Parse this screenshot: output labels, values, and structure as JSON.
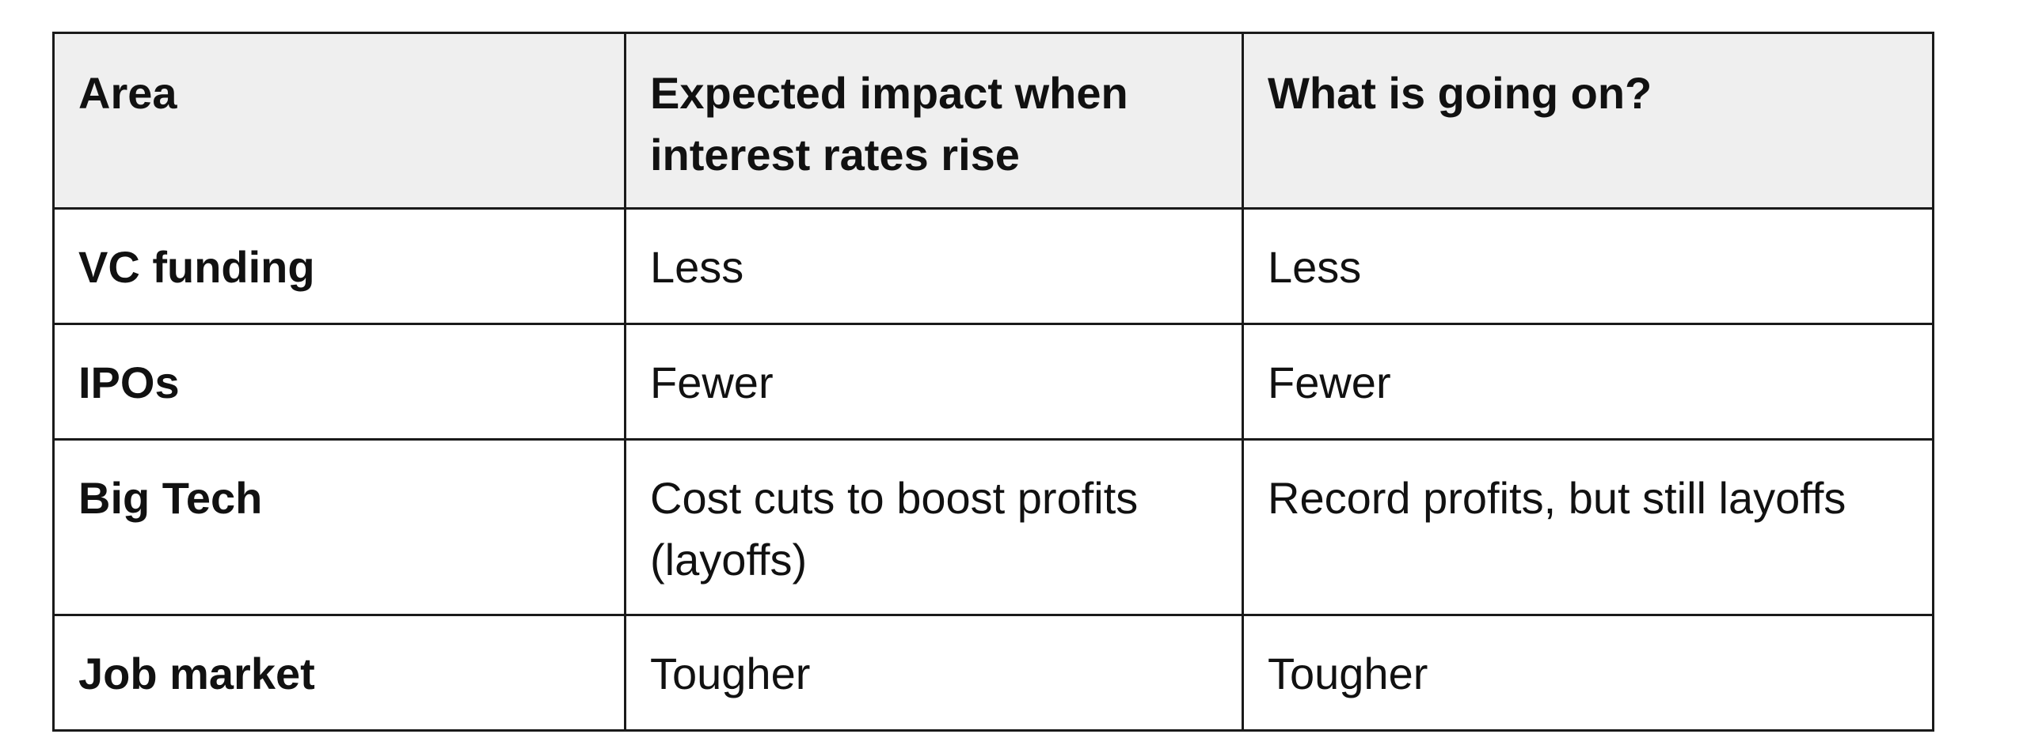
{
  "table": {
    "headers": [
      "Area",
      "Expected impact when interest rates rise",
      "What is going on?"
    ],
    "rows": [
      {
        "area": "VC funding",
        "expected": "Less",
        "actual": "Less"
      },
      {
        "area": "IPOs",
        "expected": "Fewer",
        "actual": "Fewer"
      },
      {
        "area": "Big Tech",
        "expected": "Cost cuts to boost profits (layoffs)",
        "actual": "Record profits, but still layoffs"
      },
      {
        "area": "Job market",
        "expected": "Tougher",
        "actual": "Tougher"
      }
    ]
  },
  "colors": {
    "header_bg": "#efefef",
    "border": "#1a1a1a",
    "text": "#111111"
  }
}
